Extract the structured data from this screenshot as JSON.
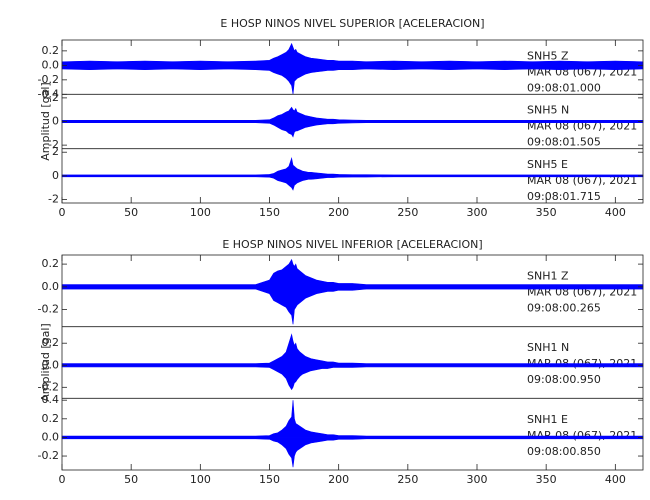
{
  "chart_data": [
    {
      "type": "seismogram",
      "title": "E HOSP NINOS NIVEL SUPERIOR [ACELERACION]",
      "y_label": "Amplitud [gal]",
      "color": "#0000ff",
      "xlim": [
        0,
        420
      ],
      "xticks": [
        0,
        50,
        100,
        150,
        200,
        250,
        300,
        350,
        400
      ],
      "x": [
        0,
        20,
        40,
        60,
        80,
        100,
        120,
        140,
        150,
        153,
        156,
        159,
        162,
        164,
        166,
        167,
        168,
        169,
        170,
        172,
        174,
        176,
        178,
        180,
        184,
        188,
        192,
        196,
        200,
        210,
        220,
        240,
        260,
        280,
        300,
        320,
        340,
        360,
        380,
        400,
        420
      ],
      "traces": [
        {
          "station": "SNH5   Z",
          "date": "MAR 08 (067), 2021",
          "time": "09:08:01.000",
          "ylim": [
            -0.4,
            0.35
          ],
          "yticks": [
            -0.4,
            -0.2,
            {
              "value": 0,
              "label": "0.0"
            },
            0.2
          ],
          "max": [
            0.05,
            0.06,
            0.05,
            0.06,
            0.05,
            0.06,
            0.05,
            0.06,
            0.07,
            0.1,
            0.12,
            0.15,
            0.18,
            0.22,
            0.3,
            0.25,
            0.2,
            0.22,
            0.18,
            0.16,
            0.14,
            0.12,
            0.11,
            0.1,
            0.09,
            0.08,
            0.07,
            0.07,
            0.06,
            0.06,
            0.05,
            0.06,
            0.05,
            0.06,
            0.05,
            0.06,
            0.05,
            0.06,
            0.05,
            0.06,
            0.05
          ],
          "min": [
            -0.05,
            -0.06,
            -0.05,
            -0.06,
            -0.05,
            -0.06,
            -0.05,
            -0.06,
            -0.07,
            -0.1,
            -0.12,
            -0.14,
            -0.18,
            -0.22,
            -0.28,
            -0.4,
            -0.22,
            -0.2,
            -0.18,
            -0.16,
            -0.14,
            -0.12,
            -0.11,
            -0.1,
            -0.09,
            -0.08,
            -0.07,
            -0.07,
            -0.06,
            -0.06,
            -0.05,
            -0.06,
            -0.05,
            -0.06,
            -0.05,
            -0.06,
            -0.05,
            -0.06,
            -0.05,
            -0.06,
            -0.05
          ]
        },
        {
          "station": "SNH5   N",
          "date": "MAR 08 (067), 2021",
          "time": "09:08:01.505",
          "ylim": [
            -2.3,
            2.3
          ],
          "yticks": [
            -2,
            0,
            2
          ],
          "max": [
            0.1,
            0.1,
            0.1,
            0.1,
            0.1,
            0.1,
            0.1,
            0.1,
            0.15,
            0.3,
            0.5,
            0.6,
            0.8,
            0.9,
            1.2,
            1.0,
            0.9,
            1.1,
            0.8,
            0.7,
            0.6,
            0.5,
            0.45,
            0.4,
            0.3,
            0.25,
            0.2,
            0.2,
            0.15,
            0.12,
            0.1,
            0.1,
            0.1,
            0.1,
            0.1,
            0.1,
            0.1,
            0.1,
            0.1,
            0.1,
            0.1
          ],
          "min": [
            -0.1,
            -0.1,
            -0.1,
            -0.1,
            -0.1,
            -0.1,
            -0.1,
            -0.1,
            -0.15,
            -0.3,
            -0.5,
            -0.7,
            -0.8,
            -1.0,
            -1.1,
            -1.3,
            -0.9,
            -0.8,
            -0.8,
            -0.7,
            -0.6,
            -0.5,
            -0.45,
            -0.4,
            -0.3,
            -0.25,
            -0.2,
            -0.2,
            -0.15,
            -0.12,
            -0.1,
            -0.1,
            -0.1,
            -0.1,
            -0.1,
            -0.1,
            -0.1,
            -0.1,
            -0.1,
            -0.1,
            -0.1
          ]
        },
        {
          "station": "SNH5   E",
          "date": "MAR 08 (067), 2021",
          "time": "09:08:01.715",
          "ylim": [
            -2.3,
            2.3
          ],
          "yticks": [
            -2,
            0,
            2
          ],
          "max": [
            0.08,
            0.08,
            0.08,
            0.08,
            0.08,
            0.08,
            0.08,
            0.08,
            0.12,
            0.2,
            0.4,
            0.5,
            0.6,
            0.8,
            1.5,
            0.9,
            0.8,
            0.7,
            0.6,
            0.5,
            0.4,
            0.35,
            0.3,
            0.3,
            0.25,
            0.2,
            0.15,
            0.15,
            0.12,
            0.1,
            0.1,
            0.08,
            0.08,
            0.08,
            0.08,
            0.08,
            0.08,
            0.08,
            0.08,
            0.08,
            0.08
          ],
          "min": [
            -0.08,
            -0.08,
            -0.08,
            -0.08,
            -0.08,
            -0.08,
            -0.08,
            -0.08,
            -0.12,
            -0.2,
            -0.4,
            -0.5,
            -0.6,
            -0.8,
            -1.0,
            -1.2,
            -0.8,
            -0.7,
            -0.6,
            -0.5,
            -0.4,
            -0.35,
            -0.3,
            -0.3,
            -0.25,
            -0.2,
            -0.15,
            -0.15,
            -0.12,
            -0.1,
            -0.1,
            -0.08,
            -0.08,
            -0.08,
            -0.08,
            -0.08,
            -0.08,
            -0.08,
            -0.08,
            -0.08,
            -0.08
          ]
        }
      ]
    },
    {
      "type": "seismogram",
      "title": "E HOSP NINOS NIVEL INFERIOR [ACELERACION]",
      "y_label": "Amplitud [gal]",
      "color": "#0000ff",
      "xlim": [
        0,
        420
      ],
      "xticks": [
        0,
        50,
        100,
        150,
        200,
        250,
        300,
        350,
        400
      ],
      "x": [
        0,
        20,
        40,
        60,
        80,
        100,
        120,
        140,
        150,
        153,
        156,
        159,
        162,
        164,
        166,
        167,
        168,
        169,
        170,
        172,
        174,
        176,
        178,
        180,
        184,
        188,
        192,
        196,
        200,
        210,
        220,
        240,
        260,
        280,
        300,
        320,
        340,
        360,
        380,
        400,
        420
      ],
      "traces": [
        {
          "station": "SNH1   Z",
          "date": "MAR 08 (067), 2021",
          "time": "09:08:00.265",
          "ylim": [
            -0.35,
            0.28
          ],
          "yticks": [
            -0.2,
            {
              "value": 0,
              "label": "0.0"
            },
            0.2
          ],
          "max": [
            0.02,
            0.02,
            0.02,
            0.02,
            0.02,
            0.02,
            0.02,
            0.02,
            0.06,
            0.12,
            0.14,
            0.15,
            0.18,
            0.2,
            0.24,
            0.2,
            0.18,
            0.2,
            0.16,
            0.14,
            0.12,
            0.1,
            0.09,
            0.08,
            0.06,
            0.05,
            0.04,
            0.04,
            0.03,
            0.03,
            0.02,
            0.02,
            0.02,
            0.02,
            0.02,
            0.02,
            0.02,
            0.02,
            0.02,
            0.02,
            0.02
          ],
          "min": [
            -0.02,
            -0.02,
            -0.02,
            -0.02,
            -0.02,
            -0.02,
            -0.02,
            -0.02,
            -0.06,
            -0.12,
            -0.14,
            -0.16,
            -0.18,
            -0.22,
            -0.25,
            -0.33,
            -0.2,
            -0.18,
            -0.16,
            -0.14,
            -0.12,
            -0.1,
            -0.09,
            -0.08,
            -0.06,
            -0.05,
            -0.04,
            -0.04,
            -0.03,
            -0.03,
            -0.02,
            -0.02,
            -0.02,
            -0.02,
            -0.02,
            -0.02,
            -0.02,
            -0.02,
            -0.02,
            -0.02,
            -0.02
          ]
        },
        {
          "station": "SNH1   N",
          "date": "MAR 08 (067), 2021",
          "time": "09:08:00.950",
          "ylim": [
            -0.3,
            0.35
          ],
          "yticks": [
            -0.2,
            {
              "value": 0,
              "label": "0.0"
            },
            0.2
          ],
          "max": [
            0.015,
            0.015,
            0.015,
            0.015,
            0.015,
            0.015,
            0.015,
            0.015,
            0.02,
            0.04,
            0.06,
            0.08,
            0.12,
            0.2,
            0.28,
            0.22,
            0.18,
            0.2,
            0.15,
            0.12,
            0.1,
            0.08,
            0.07,
            0.06,
            0.05,
            0.04,
            0.03,
            0.03,
            0.02,
            0.02,
            0.015,
            0.015,
            0.015,
            0.015,
            0.015,
            0.015,
            0.015,
            0.015,
            0.015,
            0.015,
            0.015
          ],
          "min": [
            -0.015,
            -0.015,
            -0.015,
            -0.015,
            -0.015,
            -0.015,
            -0.015,
            -0.015,
            -0.02,
            -0.04,
            -0.06,
            -0.08,
            -0.12,
            -0.18,
            -0.22,
            -0.2,
            -0.16,
            -0.15,
            -0.13,
            -0.1,
            -0.08,
            -0.07,
            -0.06,
            -0.05,
            -0.04,
            -0.03,
            -0.03,
            -0.02,
            -0.02,
            -0.02,
            -0.015,
            -0.015,
            -0.015,
            -0.015,
            -0.015,
            -0.015,
            -0.015,
            -0.015,
            -0.015,
            -0.015,
            -0.015
          ]
        },
        {
          "station": "SNH1   E",
          "date": "MAR 08 (067), 2021",
          "time": "09:08:00.850",
          "ylim": [
            -0.35,
            0.42
          ],
          "yticks": [
            -0.2,
            {
              "value": 0,
              "label": "0.0"
            },
            0.2,
            0.4
          ],
          "max": [
            0.015,
            0.015,
            0.015,
            0.015,
            0.015,
            0.015,
            0.015,
            0.015,
            0.02,
            0.04,
            0.05,
            0.08,
            0.12,
            0.18,
            0.22,
            0.4,
            0.2,
            0.15,
            0.14,
            0.12,
            0.1,
            0.08,
            0.07,
            0.06,
            0.05,
            0.04,
            0.03,
            0.03,
            0.02,
            0.02,
            0.015,
            0.015,
            0.015,
            0.015,
            0.015,
            0.015,
            0.015,
            0.015,
            0.015,
            0.015,
            0.015
          ],
          "min": [
            -0.015,
            -0.015,
            -0.015,
            -0.015,
            -0.015,
            -0.015,
            -0.015,
            -0.015,
            -0.02,
            -0.04,
            -0.05,
            -0.08,
            -0.12,
            -0.18,
            -0.22,
            -0.32,
            -0.2,
            -0.16,
            -0.14,
            -0.12,
            -0.1,
            -0.08,
            -0.07,
            -0.06,
            -0.05,
            -0.04,
            -0.03,
            -0.03,
            -0.02,
            -0.02,
            -0.015,
            -0.015,
            -0.015,
            -0.015,
            -0.015,
            -0.015,
            -0.015,
            -0.015,
            -0.015,
            -0.015,
            -0.015
          ]
        }
      ]
    }
  ]
}
